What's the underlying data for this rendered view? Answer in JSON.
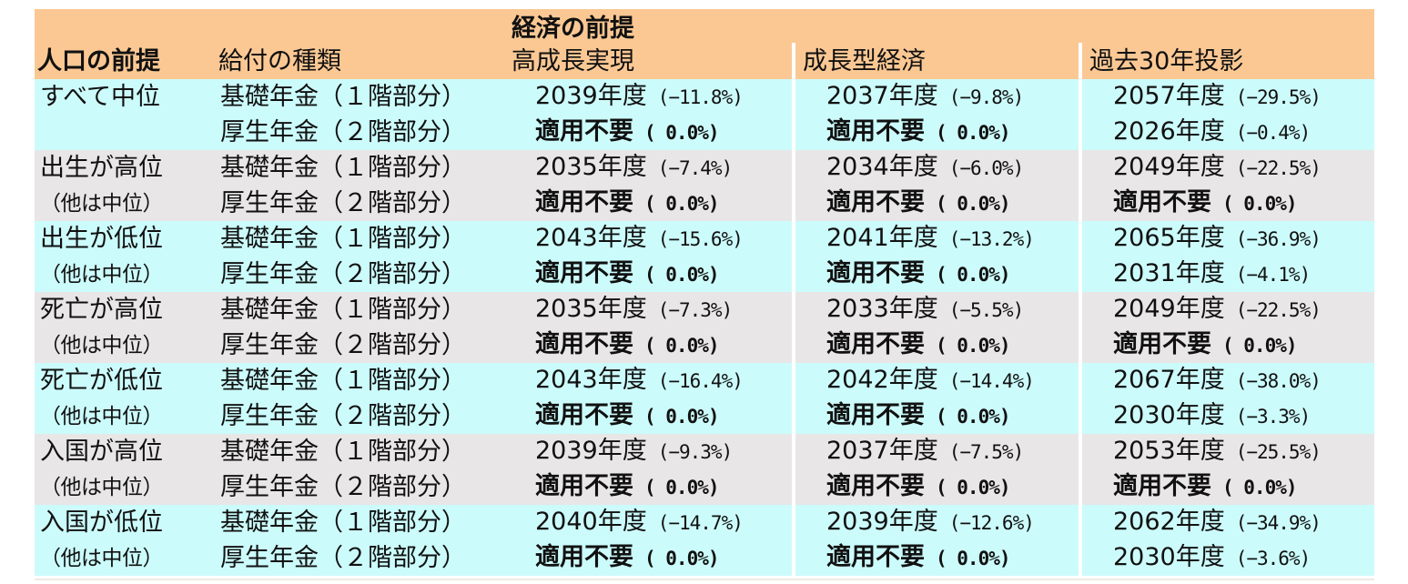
{
  "headers": {
    "economy_group": "経済の前提",
    "population": "人口の前提",
    "benefit_type": "給付の種類",
    "scenario1": "高成長実現",
    "scenario2": "成長型経済",
    "scenario3": "過去30年投影"
  },
  "colors": {
    "header": "#fbc894",
    "cyan_band": "#ccfbfb",
    "gray_band": "#e8e6e6"
  },
  "rows": [
    {
      "band": "cyan",
      "pop": "すべて中位",
      "pop_sub": "",
      "benefit": "基礎年金（１階部分）",
      "c1": {
        "year": "2039年度",
        "pct": "(−11.8%)"
      },
      "c2": {
        "year": "2037年度",
        "pct": "(−9.8%)"
      },
      "c3": {
        "year": "2057年度",
        "pct": "(−29.5%)"
      }
    },
    {
      "band": "cyan",
      "pop": "",
      "pop_sub": "",
      "benefit": "厚生年金（２階部分）",
      "c1": {
        "year": "適用不要",
        "pct": "( 0.0%)"
      },
      "c2": {
        "year": "適用不要",
        "pct": "( 0.0%)"
      },
      "c3": {
        "year": "2026年度",
        "pct": "(−0.4%)"
      }
    },
    {
      "band": "gray",
      "pop": "出生が高位",
      "pop_sub": "",
      "benefit": "基礎年金（１階部分）",
      "c1": {
        "year": "2035年度",
        "pct": "(−7.4%)"
      },
      "c2": {
        "year": "2034年度",
        "pct": "(−6.0%)"
      },
      "c3": {
        "year": "2049年度",
        "pct": "(−22.5%)"
      }
    },
    {
      "band": "gray",
      "pop": "",
      "pop_sub": "（他は中位）",
      "benefit": "厚生年金（２階部分）",
      "c1": {
        "year": "適用不要",
        "pct": "( 0.0%)"
      },
      "c2": {
        "year": "適用不要",
        "pct": "( 0.0%)"
      },
      "c3": {
        "year": "適用不要",
        "pct": "( 0.0%)"
      }
    },
    {
      "band": "cyan",
      "pop": "出生が低位",
      "pop_sub": "",
      "benefit": "基礎年金（１階部分）",
      "c1": {
        "year": "2043年度",
        "pct": "(−15.6%)"
      },
      "c2": {
        "year": "2041年度",
        "pct": "(−13.2%)"
      },
      "c3": {
        "year": "2065年度",
        "pct": "(−36.9%)"
      }
    },
    {
      "band": "cyan",
      "pop": "",
      "pop_sub": "（他は中位）",
      "benefit": "厚生年金（２階部分）",
      "c1": {
        "year": "適用不要",
        "pct": "( 0.0%)"
      },
      "c2": {
        "year": "適用不要",
        "pct": "( 0.0%)"
      },
      "c3": {
        "year": "2031年度",
        "pct": "(−4.1%)"
      }
    },
    {
      "band": "gray",
      "pop": "死亡が高位",
      "pop_sub": "",
      "benefit": "基礎年金（１階部分）",
      "c1": {
        "year": "2035年度",
        "pct": "(−7.3%)"
      },
      "c2": {
        "year": "2033年度",
        "pct": "(−5.5%)"
      },
      "c3": {
        "year": "2049年度",
        "pct": "(−22.5%)"
      }
    },
    {
      "band": "gray",
      "pop": "",
      "pop_sub": "（他は中位）",
      "benefit": "厚生年金（２階部分）",
      "c1": {
        "year": "適用不要",
        "pct": "( 0.0%)"
      },
      "c2": {
        "year": "適用不要",
        "pct": "( 0.0%)"
      },
      "c3": {
        "year": "適用不要",
        "pct": "( 0.0%)"
      }
    },
    {
      "band": "cyan",
      "pop": "死亡が低位",
      "pop_sub": "",
      "benefit": "基礎年金（１階部分）",
      "c1": {
        "year": "2043年度",
        "pct": "(−16.4%)"
      },
      "c2": {
        "year": "2042年度",
        "pct": "(−14.4%)"
      },
      "c3": {
        "year": "2067年度",
        "pct": "(−38.0%)"
      }
    },
    {
      "band": "cyan",
      "pop": "",
      "pop_sub": "（他は中位）",
      "benefit": "厚生年金（２階部分）",
      "c1": {
        "year": "適用不要",
        "pct": "( 0.0%)"
      },
      "c2": {
        "year": "適用不要",
        "pct": "( 0.0%)"
      },
      "c3": {
        "year": "2030年度",
        "pct": "(−3.3%)"
      }
    },
    {
      "band": "gray",
      "pop": "入国が高位",
      "pop_sub": "",
      "benefit": "基礎年金（１階部分）",
      "c1": {
        "year": "2039年度",
        "pct": "(−9.3%)"
      },
      "c2": {
        "year": "2037年度",
        "pct": "(−7.5%)"
      },
      "c3": {
        "year": "2053年度",
        "pct": "(−25.5%)"
      }
    },
    {
      "band": "gray",
      "pop": "",
      "pop_sub": "（他は中位）",
      "benefit": "厚生年金（２階部分）",
      "c1": {
        "year": "適用不要",
        "pct": "( 0.0%)"
      },
      "c2": {
        "year": "適用不要",
        "pct": "( 0.0%)"
      },
      "c3": {
        "year": "適用不要",
        "pct": "( 0.0%)"
      }
    },
    {
      "band": "cyan",
      "pop": "入国が低位",
      "pop_sub": "",
      "benefit": "基礎年金（１階部分）",
      "c1": {
        "year": "2040年度",
        "pct": "(−14.7%)"
      },
      "c2": {
        "year": "2039年度",
        "pct": "(−12.6%)"
      },
      "c3": {
        "year": "2062年度",
        "pct": "(−34.9%)"
      }
    },
    {
      "band": "cyan",
      "pop": "",
      "pop_sub": "（他は中位）",
      "benefit": "厚生年金（２階部分）",
      "c1": {
        "year": "適用不要",
        "pct": "( 0.0%)"
      },
      "c2": {
        "year": "適用不要",
        "pct": "( 0.0%)"
      },
      "c3": {
        "year": "2030年度",
        "pct": "(−3.6%)"
      }
    }
  ]
}
